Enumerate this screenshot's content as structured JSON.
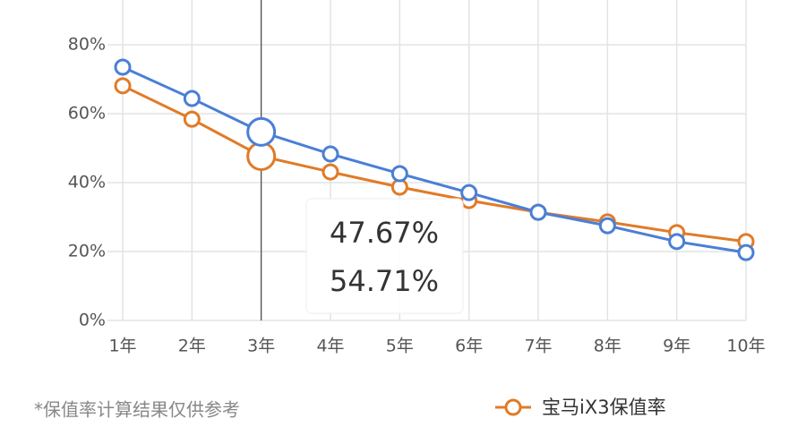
{
  "chart_data": {
    "type": "line",
    "categories": [
      "1年",
      "2年",
      "3年",
      "4年",
      "5年",
      "6年",
      "7年",
      "8年",
      "9年",
      "10年"
    ],
    "series": [
      {
        "name": "宝马iX3保值率",
        "color": "#e07b28",
        "values": [
          68.1,
          58.4,
          47.67,
          43.1,
          38.7,
          34.8,
          31.4,
          28.6,
          25.5,
          22.9
        ],
        "value_labels": [
          null,
          null,
          "47.67%",
          null,
          null,
          null,
          null,
          null,
          null,
          null
        ]
      },
      {
        "color": "#4a7fd6",
        "values": [
          73.5,
          64.4,
          54.71,
          48.3,
          42.6,
          37.1,
          31.4,
          27.5,
          22.9,
          19.7
        ],
        "value_labels": [
          null,
          null,
          "54.71%",
          null,
          null,
          null,
          null,
          null,
          null,
          null
        ]
      }
    ],
    "ylim": [
      0,
      80
    ],
    "yticks": [
      {
        "value": 0,
        "label": "0%"
      },
      {
        "value": 20,
        "label": "20%"
      },
      {
        "value": 40,
        "label": "40%"
      },
      {
        "value": 60,
        "label": "60%"
      },
      {
        "value": 80,
        "label": "80%"
      }
    ],
    "grid": true,
    "note": "*保值率计算结果仅供参考"
  }
}
